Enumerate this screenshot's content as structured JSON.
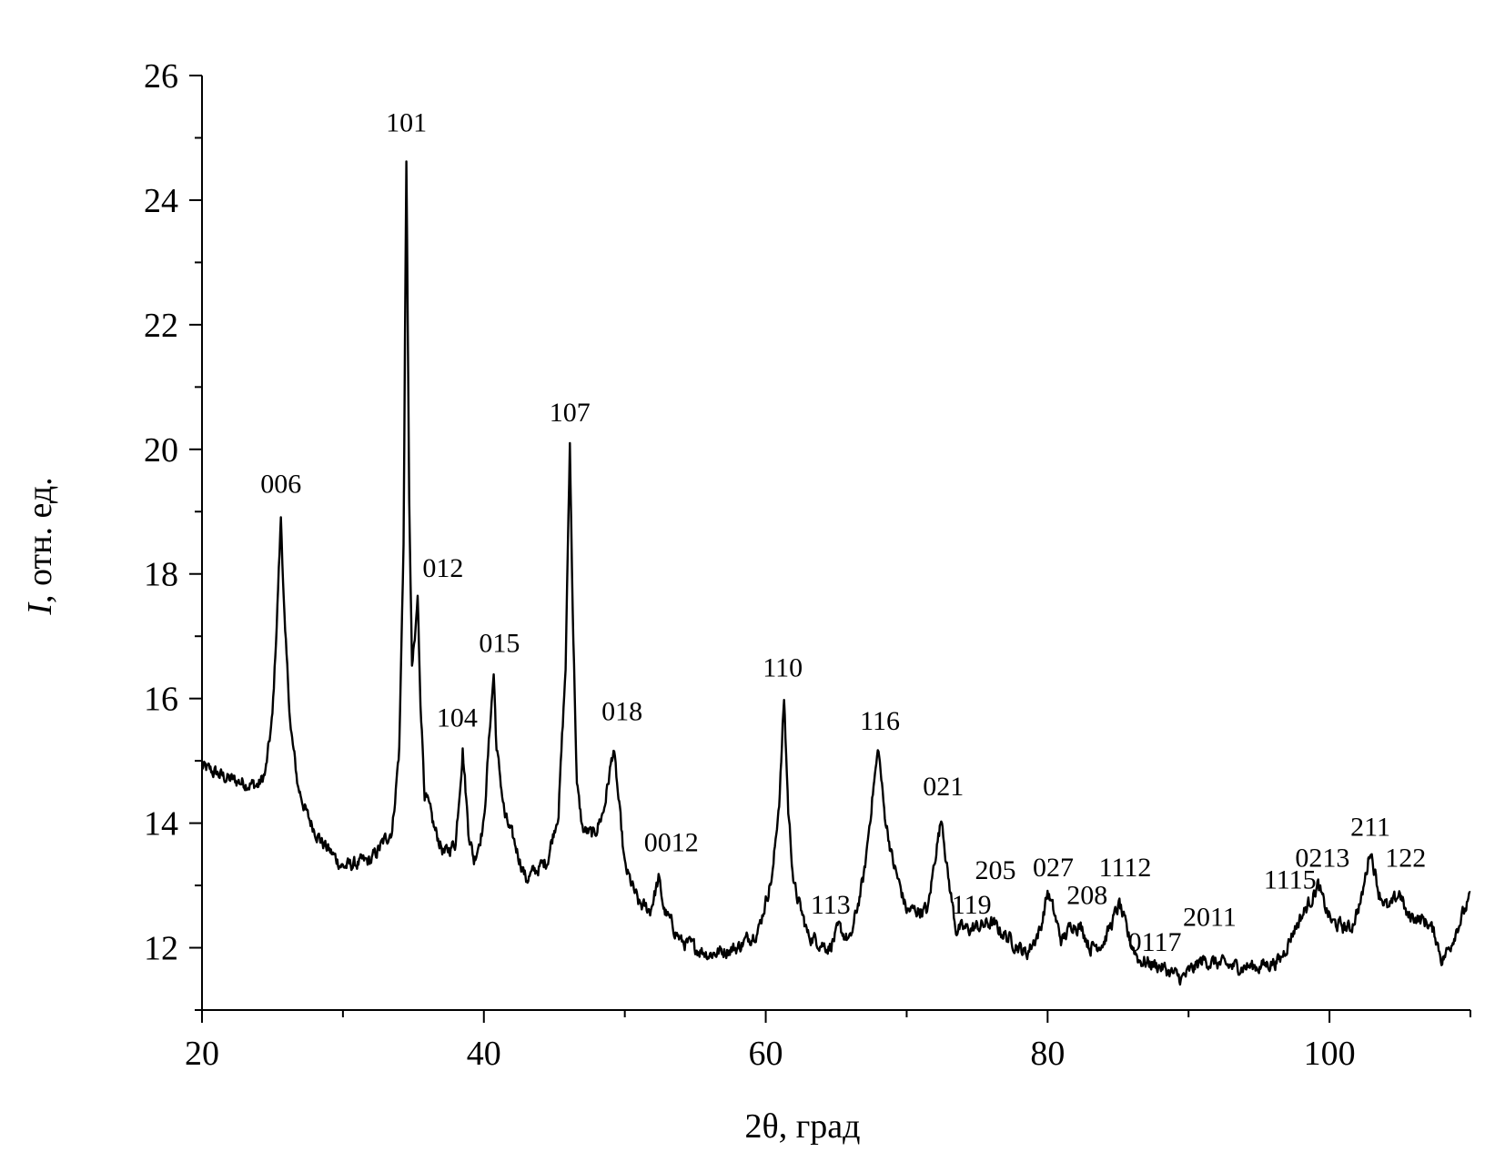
{
  "chart_data": {
    "type": "line",
    "title": "",
    "xlabel": "2θ, град",
    "ylabel_symbol": "I",
    "ylabel_rest": ", отн. ед.",
    "xlim": [
      20,
      110
    ],
    "ylim": [
      11,
      26
    ],
    "x_ticks": [
      20,
      40,
      60,
      80,
      100
    ],
    "y_ticks": [
      12,
      14,
      16,
      18,
      20,
      22,
      24,
      26
    ],
    "grid": false,
    "legend": "none",
    "line_color": "#000000",
    "noise_amplitude": 0.13,
    "series": [
      {
        "x": [
          20,
          22,
          24,
          24.5,
          25,
          25.3,
          25.6,
          25.9,
          26.3,
          26.8,
          27.5,
          28.5,
          30,
          32,
          33.5,
          34.0,
          34.3,
          34.5,
          34.7,
          34.9,
          35.1,
          35.3,
          35.5,
          35.8,
          36.5,
          37.2,
          38.0,
          38.5,
          38.9,
          39.3,
          40.0,
          40.5,
          40.7,
          40.9,
          41.5,
          42.3,
          43.0,
          44.5,
          45.3,
          45.8,
          46.1,
          46.3,
          46.6,
          47.0,
          47.8,
          48.5,
          49.2,
          49.5,
          50.0,
          51.0,
          51.8,
          52.4,
          52.8,
          54.0,
          56.0,
          58.0,
          59.5,
          60.5,
          61.0,
          61.3,
          61.6,
          62.0,
          63.0,
          64.5,
          65.2,
          66.0,
          67.0,
          67.6,
          68.0,
          68.4,
          69.0,
          70.0,
          71.5,
          72.1,
          72.5,
          72.9,
          73.5,
          74.5,
          76.0,
          77.5,
          78.5,
          79.5,
          80.0,
          80.4,
          81.0,
          81.8,
          82.5,
          83.0,
          84.0,
          85.1,
          85.7,
          86.5,
          88.0,
          89.5,
          91.0,
          93.0,
          95.0,
          96.5,
          97.5,
          98.5,
          99.2,
          99.6,
          100.2,
          101.5,
          102.3,
          102.9,
          103.5,
          104.2,
          105.0,
          105.5,
          106.0,
          107.0,
          107.5,
          108.0,
          108.5,
          109.0,
          110.0
        ],
        "y": [
          14.9,
          14.7,
          14.6,
          14.8,
          15.7,
          17.2,
          18.9,
          17.0,
          15.5,
          14.6,
          14.1,
          13.7,
          13.3,
          13.4,
          13.9,
          15.2,
          18.5,
          24.7,
          19.2,
          16.5,
          16.9,
          17.6,
          16.0,
          14.5,
          13.9,
          13.5,
          13.7,
          15.2,
          13.9,
          13.4,
          14.0,
          15.8,
          16.4,
          15.2,
          14.1,
          13.6,
          13.1,
          13.4,
          14.2,
          16.5,
          20.1,
          17.5,
          14.6,
          13.9,
          13.8,
          14.2,
          15.2,
          14.5,
          13.3,
          12.7,
          12.6,
          13.1,
          12.6,
          12.1,
          11.9,
          12.0,
          12.3,
          13.2,
          14.5,
          16.0,
          14.2,
          13.0,
          12.2,
          12.0,
          12.3,
          12.1,
          13.2,
          14.5,
          15.2,
          14.2,
          13.4,
          12.6,
          12.6,
          13.6,
          14.1,
          13.2,
          12.3,
          12.3,
          12.4,
          12.1,
          11.9,
          12.3,
          12.9,
          12.6,
          12.1,
          12.4,
          12.3,
          12.0,
          12.1,
          12.7,
          12.2,
          11.8,
          11.7,
          11.5,
          11.8,
          11.7,
          11.7,
          11.8,
          12.3,
          12.7,
          13.0,
          12.7,
          12.4,
          12.3,
          12.8,
          13.6,
          12.9,
          12.6,
          12.9,
          12.5,
          12.5,
          12.4,
          12.2,
          11.8,
          12.0,
          12.3,
          12.8
        ],
        "peak_labels": [
          {
            "label": "006",
            "x": 25.6,
            "y": 19.3
          },
          {
            "label": "101",
            "x": 34.5,
            "y": 25.1
          },
          {
            "label": "012",
            "x": 37.1,
            "y": 17.95
          },
          {
            "label": "104",
            "x": 38.1,
            "y": 15.55
          },
          {
            "label": "015",
            "x": 41.1,
            "y": 16.75
          },
          {
            "label": "107",
            "x": 46.1,
            "y": 20.45
          },
          {
            "label": "018",
            "x": 49.8,
            "y": 15.65
          },
          {
            "label": "0012",
            "x": 53.3,
            "y": 13.55
          },
          {
            "label": "110",
            "x": 61.2,
            "y": 16.35
          },
          {
            "label": "113",
            "x": 64.6,
            "y": 12.55
          },
          {
            "label": "116",
            "x": 68.1,
            "y": 15.5
          },
          {
            "label": "021",
            "x": 72.6,
            "y": 14.45
          },
          {
            "label": "119",
            "x": 74.6,
            "y": 12.55
          },
          {
            "label": "205",
            "x": 76.3,
            "y": 13.1
          },
          {
            "label": "027",
            "x": 80.4,
            "y": 13.15
          },
          {
            "label": "208",
            "x": 82.8,
            "y": 12.7
          },
          {
            "label": "1112",
            "x": 85.5,
            "y": 13.15
          },
          {
            "label": "0117",
            "x": 87.6,
            "y": 11.95
          },
          {
            "label": "2011",
            "x": 91.5,
            "y": 12.35
          },
          {
            "label": "1115",
            "x": 97.2,
            "y": 12.95
          },
          {
            "label": "0213",
            "x": 99.5,
            "y": 13.3
          },
          {
            "label": "211",
            "x": 102.9,
            "y": 13.8
          },
          {
            "label": "122",
            "x": 105.4,
            "y": 13.3
          }
        ]
      }
    ]
  }
}
